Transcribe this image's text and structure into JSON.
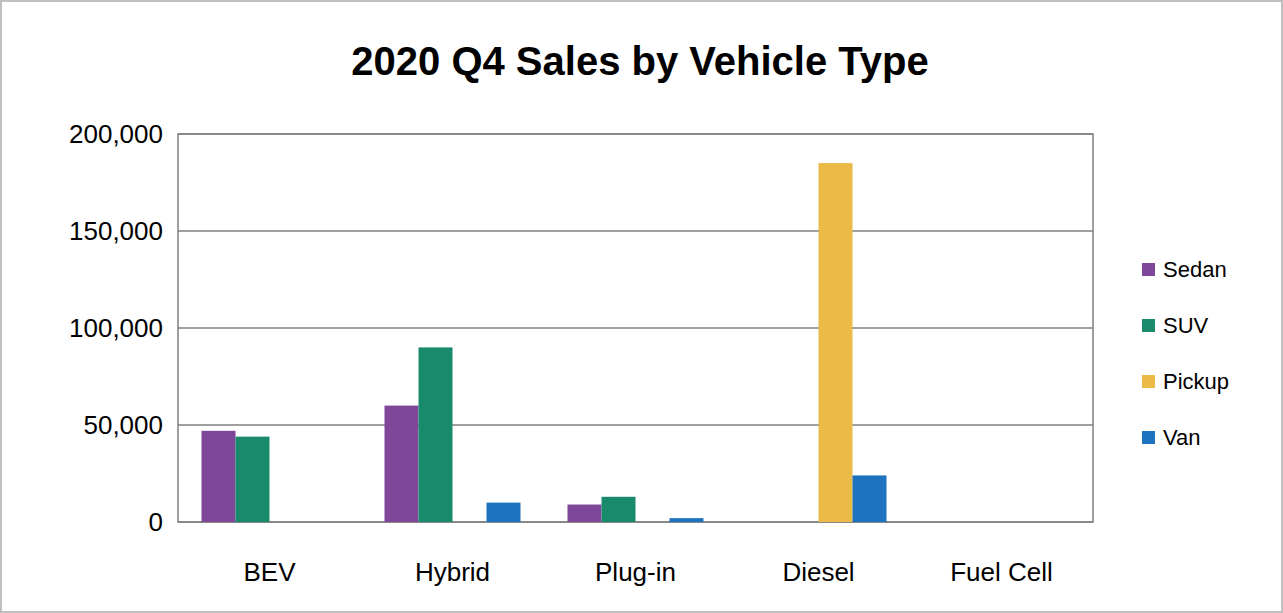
{
  "chart_data": {
    "type": "bar",
    "title": "2020 Q4 Sales by Vehicle Type",
    "categories": [
      "BEV",
      "Hybrid",
      "Plug-in",
      "Diesel",
      "Fuel Cell"
    ],
    "series": [
      {
        "name": "Sedan",
        "color": "#7e479a",
        "values": [
          47000,
          60000,
          9000,
          0,
          0
        ]
      },
      {
        "name": "SUV",
        "color": "#1a8a6c",
        "values": [
          44000,
          90000,
          13000,
          0,
          0
        ]
      },
      {
        "name": "Pickup",
        "color": "#ebba47",
        "values": [
          0,
          0,
          0,
          185000,
          0
        ]
      },
      {
        "name": "Van",
        "color": "#1e73be",
        "values": [
          0,
          10000,
          2000,
          24000,
          0
        ]
      }
    ],
    "ylim": [
      0,
      200000
    ],
    "yticks": [
      0,
      {
        "value": 50000,
        "label": "50,000"
      },
      {
        "value": 100000,
        "label": "100,000"
      },
      {
        "value": 150000,
        "label": "150,000"
      },
      {
        "value": 200000,
        "label": "200,000"
      }
    ],
    "grid": true,
    "legend": "right"
  }
}
